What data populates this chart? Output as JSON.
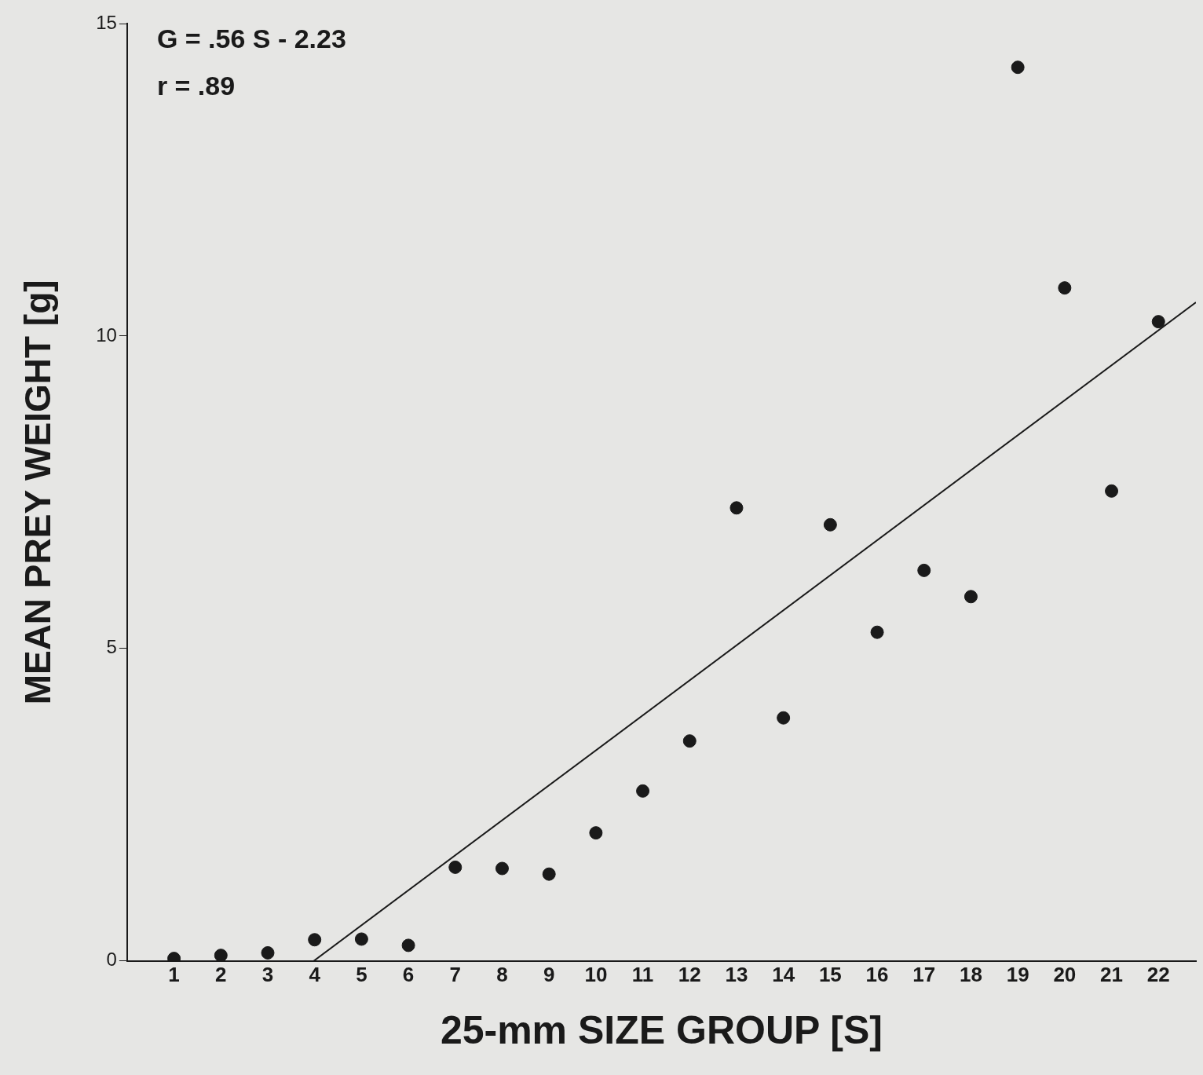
{
  "chart_data": {
    "type": "scatter",
    "xlabel": "25-mm SIZE GROUP [S]",
    "ylabel": "MEAN PREY WEIGHT [g]",
    "annotations": [
      "G = .56 S - 2.23",
      "r = .89"
    ],
    "xlim": [
      0,
      22.8
    ],
    "xticks": [
      1,
      2,
      3,
      4,
      5,
      6,
      7,
      8,
      9,
      10,
      11,
      12,
      13,
      14,
      15,
      16,
      17,
      18,
      19,
      20,
      21,
      22
    ],
    "ylim": [
      0,
      15
    ],
    "yticks": [
      0,
      5,
      10,
      15
    ],
    "grid": false,
    "legend": false,
    "marker": "circle",
    "series": [
      {
        "color": "#1a1a1a",
        "x": [
          1,
          2,
          3,
          4,
          5,
          6,
          7,
          8,
          9,
          10,
          11,
          12,
          13,
          14,
          15,
          16,
          17,
          18,
          19,
          20,
          21,
          22
        ],
        "values": [
          0.04,
          0.09,
          0.13,
          0.34,
          0.35,
          0.25,
          1.5,
          1.48,
          1.39,
          2.05,
          2.72,
          3.52,
          7.25,
          3.89,
          6.98,
          5.26,
          6.25,
          5.83,
          14.3,
          10.77,
          7.52,
          10.23
        ]
      },
      {
        "type": "line",
        "color": "#1a1a1a",
        "line_style": "solid",
        "marker": "none",
        "x": [
          3.98,
          22.8
        ],
        "values": [
          0,
          10.54
        ]
      }
    ]
  }
}
